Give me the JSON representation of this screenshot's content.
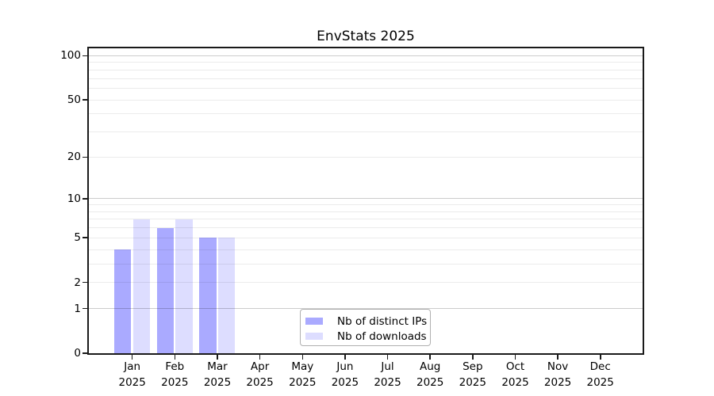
{
  "chart_data": {
    "type": "bar",
    "title": "EnvStats 2025",
    "categories": [
      "Jan",
      "Feb",
      "Mar",
      "Apr",
      "May",
      "Jun",
      "Jul",
      "Aug",
      "Sep",
      "Oct",
      "Nov",
      "Dec"
    ],
    "year_label": "2025",
    "series": [
      {
        "name": "Nb of distinct IPs",
        "color": "#aaaaff",
        "values": [
          4,
          6,
          5,
          0,
          0,
          0,
          0,
          0,
          0,
          0,
          0,
          0
        ]
      },
      {
        "name": "Nb of downloads",
        "color": "#ddddff",
        "values": [
          7,
          7,
          5,
          0,
          0,
          0,
          0,
          0,
          0,
          0,
          0,
          0
        ]
      }
    ],
    "y_axis": {
      "scale": "log10(1+value)",
      "tick_values": [
        0,
        1,
        2,
        5,
        10,
        20,
        50,
        100
      ],
      "major_gridlines": [
        1,
        10,
        100
      ],
      "minor_gridlines": [
        2,
        3,
        4,
        5,
        6,
        7,
        8,
        9,
        20,
        30,
        40,
        50,
        60,
        70,
        80,
        90
      ],
      "ylim": [
        0,
        100
      ]
    },
    "legend": {
      "items": [
        {
          "label": "Nb of distinct IPs",
          "color": "#aaaaff"
        },
        {
          "label": "Nb of downloads",
          "color": "#ddddff"
        }
      ]
    },
    "colors": {
      "axis": "#1a1a1a",
      "grid_major": "rgba(0,0,0,0.20)",
      "grid_minor": "rgba(0,0,0,0.08)",
      "background": "#ffffff",
      "text": "#000000"
    }
  }
}
